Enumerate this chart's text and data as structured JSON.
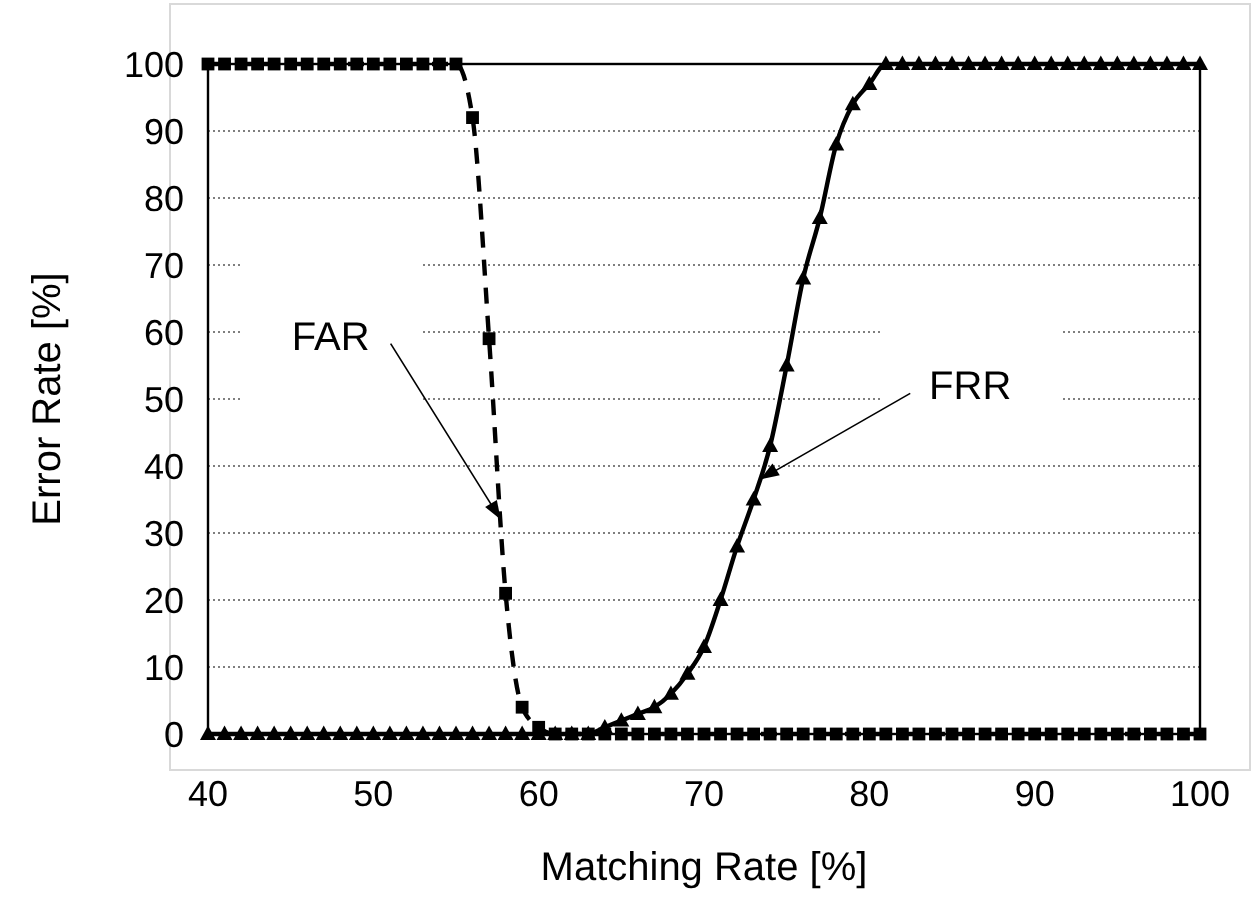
{
  "chart_data": {
    "type": "line",
    "xlabel": "Matching Rate [%]",
    "ylabel": "Error Rate [%]",
    "x": [
      40,
      41,
      42,
      43,
      44,
      45,
      46,
      47,
      48,
      49,
      50,
      51,
      52,
      53,
      54,
      55,
      56,
      57,
      58,
      59,
      60,
      61,
      62,
      63,
      64,
      65,
      66,
      67,
      68,
      69,
      70,
      71,
      72,
      73,
      74,
      75,
      76,
      77,
      78,
      79,
      80,
      81,
      82,
      83,
      84,
      85,
      86,
      87,
      88,
      89,
      90,
      91,
      92,
      93,
      94,
      95,
      96,
      97,
      98,
      99,
      100
    ],
    "series": [
      {
        "color": "#000000",
        "marker": "square",
        "line_style": "dashed",
        "values": [
          100,
          100,
          100,
          100,
          100,
          100,
          100,
          100,
          100,
          100,
          100,
          100,
          100,
          100,
          100,
          100,
          92,
          59,
          21,
          4,
          1,
          0,
          0,
          0,
          0,
          0,
          0,
          0,
          0,
          0,
          0,
          0,
          0,
          0,
          0,
          0,
          0,
          0,
          0,
          0,
          0,
          0,
          0,
          0,
          0,
          0,
          0,
          0,
          0,
          0,
          0,
          0,
          0,
          0,
          0,
          0,
          0,
          0,
          0,
          0,
          0
        ]
      },
      {
        "color": "#000000",
        "marker": "triangle",
        "line_style": "solid",
        "values": [
          0,
          0,
          0,
          0,
          0,
          0,
          0,
          0,
          0,
          0,
          0,
          0,
          0,
          0,
          0,
          0,
          0,
          0,
          0,
          0,
          0,
          0,
          0,
          0,
          1,
          2,
          3,
          4,
          6,
          9,
          13,
          20,
          28,
          35,
          43,
          55,
          68,
          77,
          88,
          94,
          97,
          100,
          100,
          100,
          100,
          100,
          100,
          100,
          100,
          100,
          100,
          100,
          100,
          100,
          100,
          100,
          100,
          100,
          100,
          100,
          100
        ]
      }
    ],
    "xlim": [
      40,
      100
    ],
    "xticks": [
      40,
      50,
      60,
      70,
      80,
      90,
      100
    ],
    "ylim": [
      0,
      100
    ],
    "yticks": [
      0,
      10,
      20,
      30,
      40,
      50,
      60,
      70,
      80,
      90,
      100
    ],
    "grid": "y",
    "annotations": [
      {
        "text": "FAR",
        "x": 57.7,
        "y": 32
      },
      {
        "text": "FRR",
        "x": 73.4,
        "y": 38
      }
    ]
  }
}
